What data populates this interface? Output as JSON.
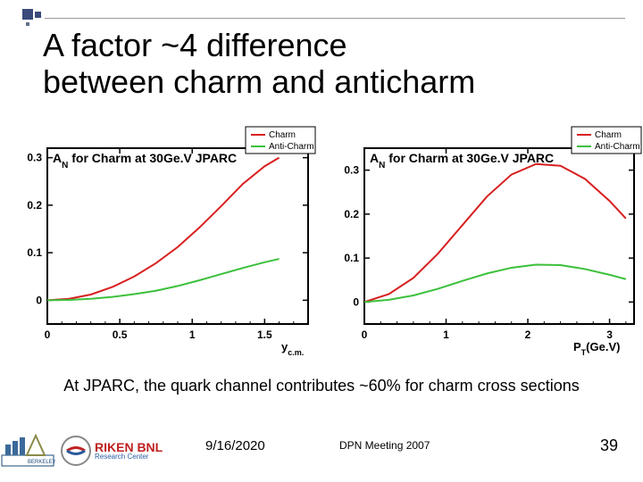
{
  "title_line1": "A factor ~4 difference",
  "title_line2": "between charm and anticharm",
  "caption": "At JPARC, the quark channel contributes ~60% for charm cross sections",
  "footer": {
    "date": "9/16/2020",
    "meeting": "DPN Meeting 2007",
    "slide_number": "39",
    "riken_line1": "RIKEN BNL",
    "riken_line2": "Research Center"
  },
  "legend": {
    "series1": "Charm",
    "series2": "Anti-Charm"
  },
  "chart_left": {
    "title": "A",
    "title_sub": "N",
    "title_rest": " for Charm at 30Ge.V JPARC",
    "type": "line",
    "xlabel": "y",
    "xlabel_sub": "c.m.",
    "xlim": [
      0,
      1.8
    ],
    "xticks": [
      0,
      0.5,
      1,
      1.5
    ],
    "ylim": [
      -0.05,
      0.32
    ],
    "yticks": [
      0,
      0.1,
      0.2,
      0.3
    ],
    "series": [
      {
        "name": "Charm",
        "color": "#d82020",
        "line_width": 2,
        "points": [
          [
            0,
            0
          ],
          [
            0.15,
            0.003
          ],
          [
            0.3,
            0.012
          ],
          [
            0.45,
            0.028
          ],
          [
            0.6,
            0.05
          ],
          [
            0.75,
            0.078
          ],
          [
            0.9,
            0.112
          ],
          [
            1.05,
            0.153
          ],
          [
            1.2,
            0.198
          ],
          [
            1.35,
            0.245
          ],
          [
            1.5,
            0.282
          ],
          [
            1.6,
            0.3
          ]
        ]
      },
      {
        "name": "Anti-Charm",
        "color": "#3cc03c",
        "line_width": 2,
        "points": [
          [
            0,
            0
          ],
          [
            0.15,
            0.0008
          ],
          [
            0.3,
            0.003
          ],
          [
            0.45,
            0.007
          ],
          [
            0.6,
            0.013
          ],
          [
            0.75,
            0.02
          ],
          [
            0.9,
            0.03
          ],
          [
            1.05,
            0.042
          ],
          [
            1.2,
            0.055
          ],
          [
            1.35,
            0.068
          ],
          [
            1.5,
            0.08
          ],
          [
            1.6,
            0.087
          ]
        ]
      }
    ],
    "axis_color": "#000000",
    "axis_width": 2,
    "tick_fontsize": 12,
    "title_fontsize": 14,
    "background": "#ffffff"
  },
  "chart_right": {
    "title": "A",
    "title_sub": "N",
    "title_rest": " for Charm at 30Ge.V JPARC",
    "type": "line",
    "xlabel": "P",
    "xlabel_sub": "T",
    "xlabel_unit": "(Ge.V)",
    "xlim": [
      0,
      3.3
    ],
    "xticks": [
      0,
      1,
      2,
      3
    ],
    "ylim": [
      -0.05,
      0.35
    ],
    "yticks": [
      0,
      0.1,
      0.2,
      0.3
    ],
    "series": [
      {
        "name": "Charm",
        "color": "#d82020",
        "line_width": 2,
        "points": [
          [
            0,
            0
          ],
          [
            0.3,
            0.018
          ],
          [
            0.6,
            0.055
          ],
          [
            0.9,
            0.11
          ],
          [
            1.2,
            0.175
          ],
          [
            1.5,
            0.24
          ],
          [
            1.8,
            0.29
          ],
          [
            2.1,
            0.314
          ],
          [
            2.4,
            0.31
          ],
          [
            2.7,
            0.28
          ],
          [
            3.0,
            0.23
          ],
          [
            3.2,
            0.19
          ]
        ]
      },
      {
        "name": "Anti-Charm",
        "color": "#3cc03c",
        "line_width": 2,
        "points": [
          [
            0,
            0
          ],
          [
            0.3,
            0.005
          ],
          [
            0.6,
            0.015
          ],
          [
            0.9,
            0.03
          ],
          [
            1.2,
            0.048
          ],
          [
            1.5,
            0.065
          ],
          [
            1.8,
            0.078
          ],
          [
            2.1,
            0.085
          ],
          [
            2.4,
            0.084
          ],
          [
            2.7,
            0.075
          ],
          [
            3.0,
            0.062
          ],
          [
            3.2,
            0.052
          ]
        ]
      }
    ],
    "axis_color": "#000000",
    "axis_width": 2,
    "tick_fontsize": 12,
    "title_fontsize": 14,
    "background": "#ffffff"
  }
}
